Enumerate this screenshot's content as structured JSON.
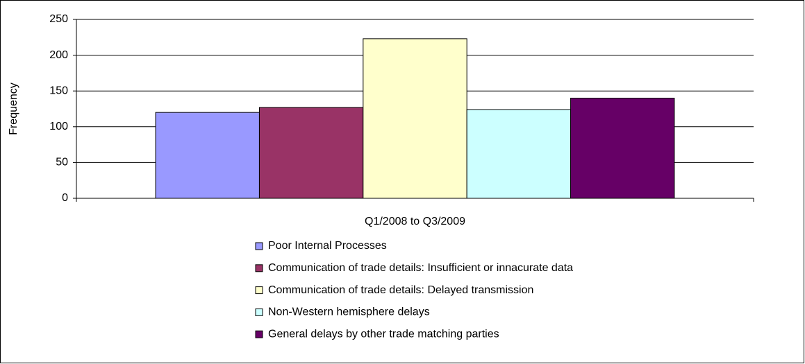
{
  "chart_data": {
    "type": "bar",
    "y_label": "Frequency",
    "categories": [
      "Q1/2008 to Q3/2009"
    ],
    "series": [
      {
        "name": "Poor Internal Processes",
        "color": "#9999ff",
        "values": [
          120
        ]
      },
      {
        "name": "Communication of trade details: Insufficient or innacurate data",
        "color": "#993366",
        "values": [
          127
        ]
      },
      {
        "name": "Communication of trade details: Delayed transmission",
        "color": "#ffffcc",
        "values": [
          223
        ]
      },
      {
        "name": "Non-Western hemisphere delays",
        "color": "#ccffff",
        "values": [
          124
        ]
      },
      {
        "name": "General delays by other trade matching parties",
        "color": "#660066",
        "values": [
          140
        ]
      }
    ],
    "ylim": [
      0,
      250
    ],
    "yticks": [
      0,
      50,
      100,
      150,
      200,
      250
    ],
    "grid": true,
    "legend": "bottom"
  }
}
